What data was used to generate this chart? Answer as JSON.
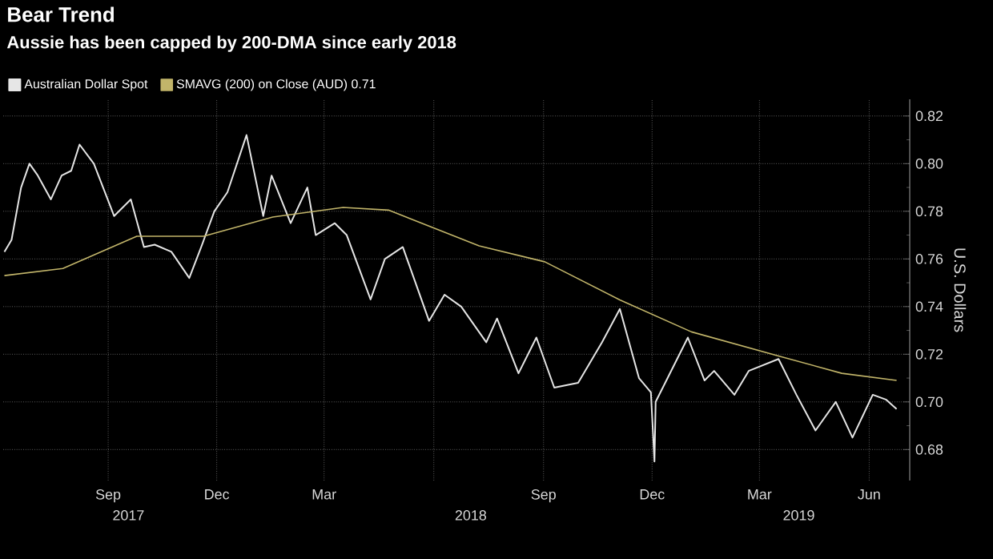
{
  "chart_data": {
    "type": "line",
    "title": "Bear Trend",
    "subtitle": "Aussie has been capped by 200-DMA since early 2018",
    "ylabel": "U.S. Dollars",
    "xlim": [
      "2017-06-05",
      "2019-07-05"
    ],
    "ylim": [
      0.667,
      0.827
    ],
    "xticks": [
      {
        "value": "2017-09-01",
        "label": "Sep"
      },
      {
        "value": "2017-12-01",
        "label": "Dec"
      },
      {
        "value": "2018-03-01",
        "label": "Mar"
      },
      {
        "value": "2018-06-01",
        "label": null
      },
      {
        "value": "2018-09-01",
        "label": "Sep"
      },
      {
        "value": "2018-12-01",
        "label": "Dec"
      },
      {
        "value": "2019-03-01",
        "label": "Mar"
      },
      {
        "value": "2019-06-01",
        "label": "Jun"
      }
    ],
    "yticks": [
      {
        "value": 0.68,
        "label": "0.68"
      },
      {
        "value": 0.7,
        "label": "0.70"
      },
      {
        "value": 0.72,
        "label": "0.72"
      },
      {
        "value": 0.74,
        "label": "0.74"
      },
      {
        "value": 0.76,
        "label": "0.76"
      },
      {
        "value": 0.78,
        "label": "0.78"
      },
      {
        "value": 0.8,
        "label": "0.80"
      },
      {
        "value": 0.82,
        "label": "0.82"
      }
    ],
    "annotations": [
      "2017",
      "2018",
      "2019"
    ],
    "grid": true,
    "legend": "top left",
    "series": [
      {
        "name": "Australian Dollar Spot",
        "color": "#e6e6e6",
        "x": [
          "2017-06-06",
          "2017-06-12",
          "2017-06-20",
          "2017-06-27",
          "2017-07-04",
          "2017-07-15",
          "2017-07-24",
          "2017-08-01",
          "2017-08-08",
          "2017-08-20",
          "2017-09-06",
          "2017-09-20",
          "2017-10-01",
          "2017-10-10",
          "2017-10-24",
          "2017-11-08",
          "2017-11-18",
          "2017-11-29",
          "2017-12-10",
          "2017-12-26",
          "2018-01-09",
          "2018-01-16",
          "2018-02-01",
          "2018-02-15",
          "2018-02-22",
          "2018-03-10",
          "2018-03-20",
          "2018-04-09",
          "2018-04-21",
          "2018-05-06",
          "2018-05-28",
          "2018-06-10",
          "2018-06-24",
          "2018-07-15",
          "2018-07-24",
          "2018-08-11",
          "2018-08-26",
          "2018-09-10",
          "2018-09-30",
          "2018-10-20",
          "2018-11-04",
          "2018-11-20",
          "2018-11-30",
          "2018-12-03",
          "2018-12-04",
          "2018-12-31",
          "2019-01-14",
          "2019-01-22",
          "2019-02-08",
          "2019-02-20",
          "2019-03-17",
          "2019-04-01",
          "2019-04-17",
          "2019-05-04",
          "2019-05-18",
          "2019-06-04",
          "2019-06-15",
          "2019-06-24"
        ],
        "values": [
          0.763,
          0.768,
          0.79,
          0.8,
          0.795,
          0.785,
          0.795,
          0.797,
          0.808,
          0.8,
          0.778,
          0.785,
          0.765,
          0.766,
          0.763,
          0.752,
          0.765,
          0.78,
          0.788,
          0.812,
          0.778,
          0.795,
          0.775,
          0.79,
          0.77,
          0.775,
          0.77,
          0.743,
          0.76,
          0.765,
          0.734,
          0.745,
          0.74,
          0.725,
          0.735,
          0.712,
          0.727,
          0.706,
          0.708,
          0.725,
          0.739,
          0.71,
          0.704,
          0.675,
          0.7,
          0.727,
          0.709,
          0.713,
          0.703,
          0.713,
          0.718,
          0.703,
          0.688,
          0.7,
          0.685,
          0.703,
          0.701,
          0.697
        ]
      },
      {
        "name": "SMAVG (200) on Close (AUD) 0.71",
        "color": "#c2b56a",
        "x": [
          "2017-06-06",
          "2017-07-25",
          "2017-09-25",
          "2017-11-20",
          "2018-01-17",
          "2018-03-17",
          "2018-04-24",
          "2018-07-09",
          "2018-09-02",
          "2018-11-04",
          "2019-01-03",
          "2019-03-17",
          "2019-05-09",
          "2019-06-24"
        ],
        "values": [
          0.753,
          0.756,
          0.7695,
          0.7695,
          0.7776,
          0.7816,
          0.7805,
          0.7655,
          0.7588,
          0.7428,
          0.7294,
          0.7193,
          0.712,
          0.709
        ]
      }
    ]
  }
}
